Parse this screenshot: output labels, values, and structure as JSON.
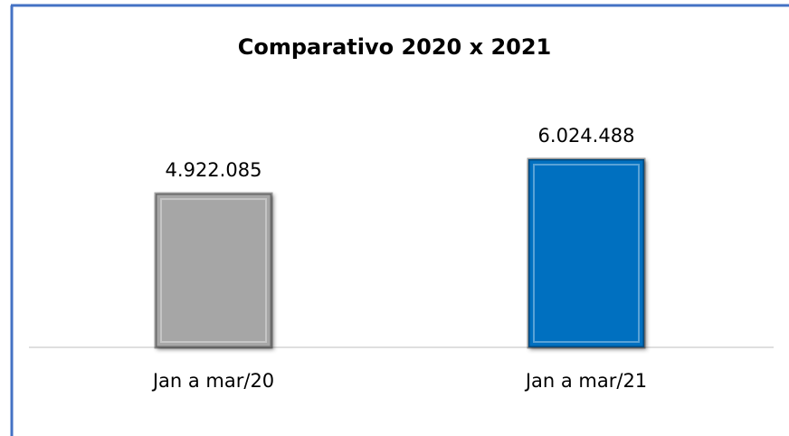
{
  "chart_data": {
    "type": "bar",
    "title": "Comparativo 2020 x 2021",
    "categories": [
      "Jan a mar/20",
      "Jan a mar/21"
    ],
    "values": [
      4922085,
      6024488
    ],
    "value_labels": [
      "4.922.085",
      "6.024.488"
    ],
    "colors": [
      "#a6a6a6",
      "#0070c0"
    ]
  }
}
